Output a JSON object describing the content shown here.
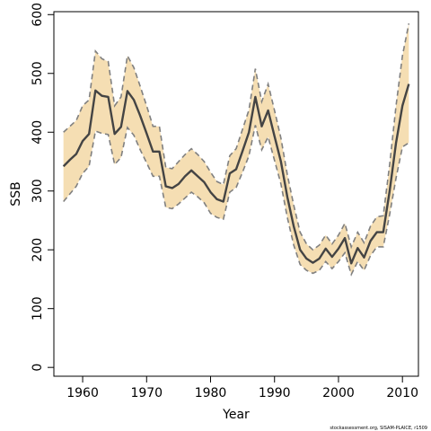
{
  "chart_data": {
    "type": "line",
    "xlabel": "Year",
    "ylabel": "SSB",
    "xlim": [
      1955.5,
      2012.5
    ],
    "ylim": [
      -15,
      605
    ],
    "xticks": [
      1960,
      1970,
      1980,
      1990,
      2000,
      2010
    ],
    "yticks": [
      0,
      100,
      200,
      300,
      400,
      500,
      600
    ],
    "grid": false,
    "colors": {
      "band": "#F5DEB3",
      "band_edge": "#808080",
      "line": "#444444"
    },
    "x": [
      1957,
      1958,
      1959,
      1960,
      1961,
      1962,
      1963,
      1964,
      1965,
      1966,
      1967,
      1968,
      1969,
      1970,
      1971,
      1972,
      1973,
      1974,
      1975,
      1976,
      1977,
      1978,
      1979,
      1980,
      1981,
      1982,
      1983,
      1984,
      1985,
      1986,
      1987,
      1988,
      1989,
      1990,
      1991,
      1992,
      1993,
      1994,
      1995,
      1996,
      1997,
      1998,
      1999,
      2000,
      2001,
      2002,
      2003,
      2004,
      2005,
      2006,
      2007,
      2008,
      2009,
      2010,
      2011
    ],
    "series": [
      {
        "role": "estimate",
        "values": [
          342,
          353,
          363,
          385,
          397,
          471,
          462,
          460,
          397,
          409,
          470,
          455,
          428,
          398,
          367,
          367,
          308,
          305,
          312,
          325,
          335,
          325,
          315,
          298,
          286,
          282,
          330,
          337,
          368,
          400,
          460,
          410,
          437,
          393,
          350,
          290,
          240,
          200,
          185,
          178,
          185,
          202,
          188,
          202,
          220,
          177,
          203,
          187,
          215,
          230,
          230,
          300,
          382,
          445,
          482
        ]
      },
      {
        "role": "upper",
        "values": [
          400,
          410,
          420,
          445,
          455,
          538,
          525,
          520,
          445,
          460,
          530,
          510,
          478,
          445,
          410,
          410,
          340,
          338,
          350,
          362,
          372,
          362,
          350,
          332,
          316,
          311,
          360,
          372,
          405,
          438,
          508,
          452,
          482,
          437,
          390,
          328,
          276,
          230,
          210,
          200,
          208,
          225,
          210,
          225,
          245,
          205,
          230,
          212,
          240,
          256,
          258,
          345,
          445,
          530,
          585
        ]
      },
      {
        "role": "lower",
        "values": [
          282,
          295,
          308,
          330,
          342,
          402,
          398,
          396,
          345,
          357,
          408,
          395,
          370,
          348,
          325,
          325,
          272,
          270,
          278,
          288,
          298,
          290,
          280,
          262,
          255,
          252,
          298,
          306,
          332,
          360,
          412,
          370,
          392,
          352,
          312,
          255,
          208,
          175,
          165,
          160,
          165,
          180,
          168,
          180,
          195,
          158,
          180,
          165,
          190,
          205,
          205,
          260,
          322,
          375,
          382
        ]
      }
    ]
  },
  "footer": {
    "credit": "stockassessment.org, SISAM-PLAICE, r1509"
  }
}
